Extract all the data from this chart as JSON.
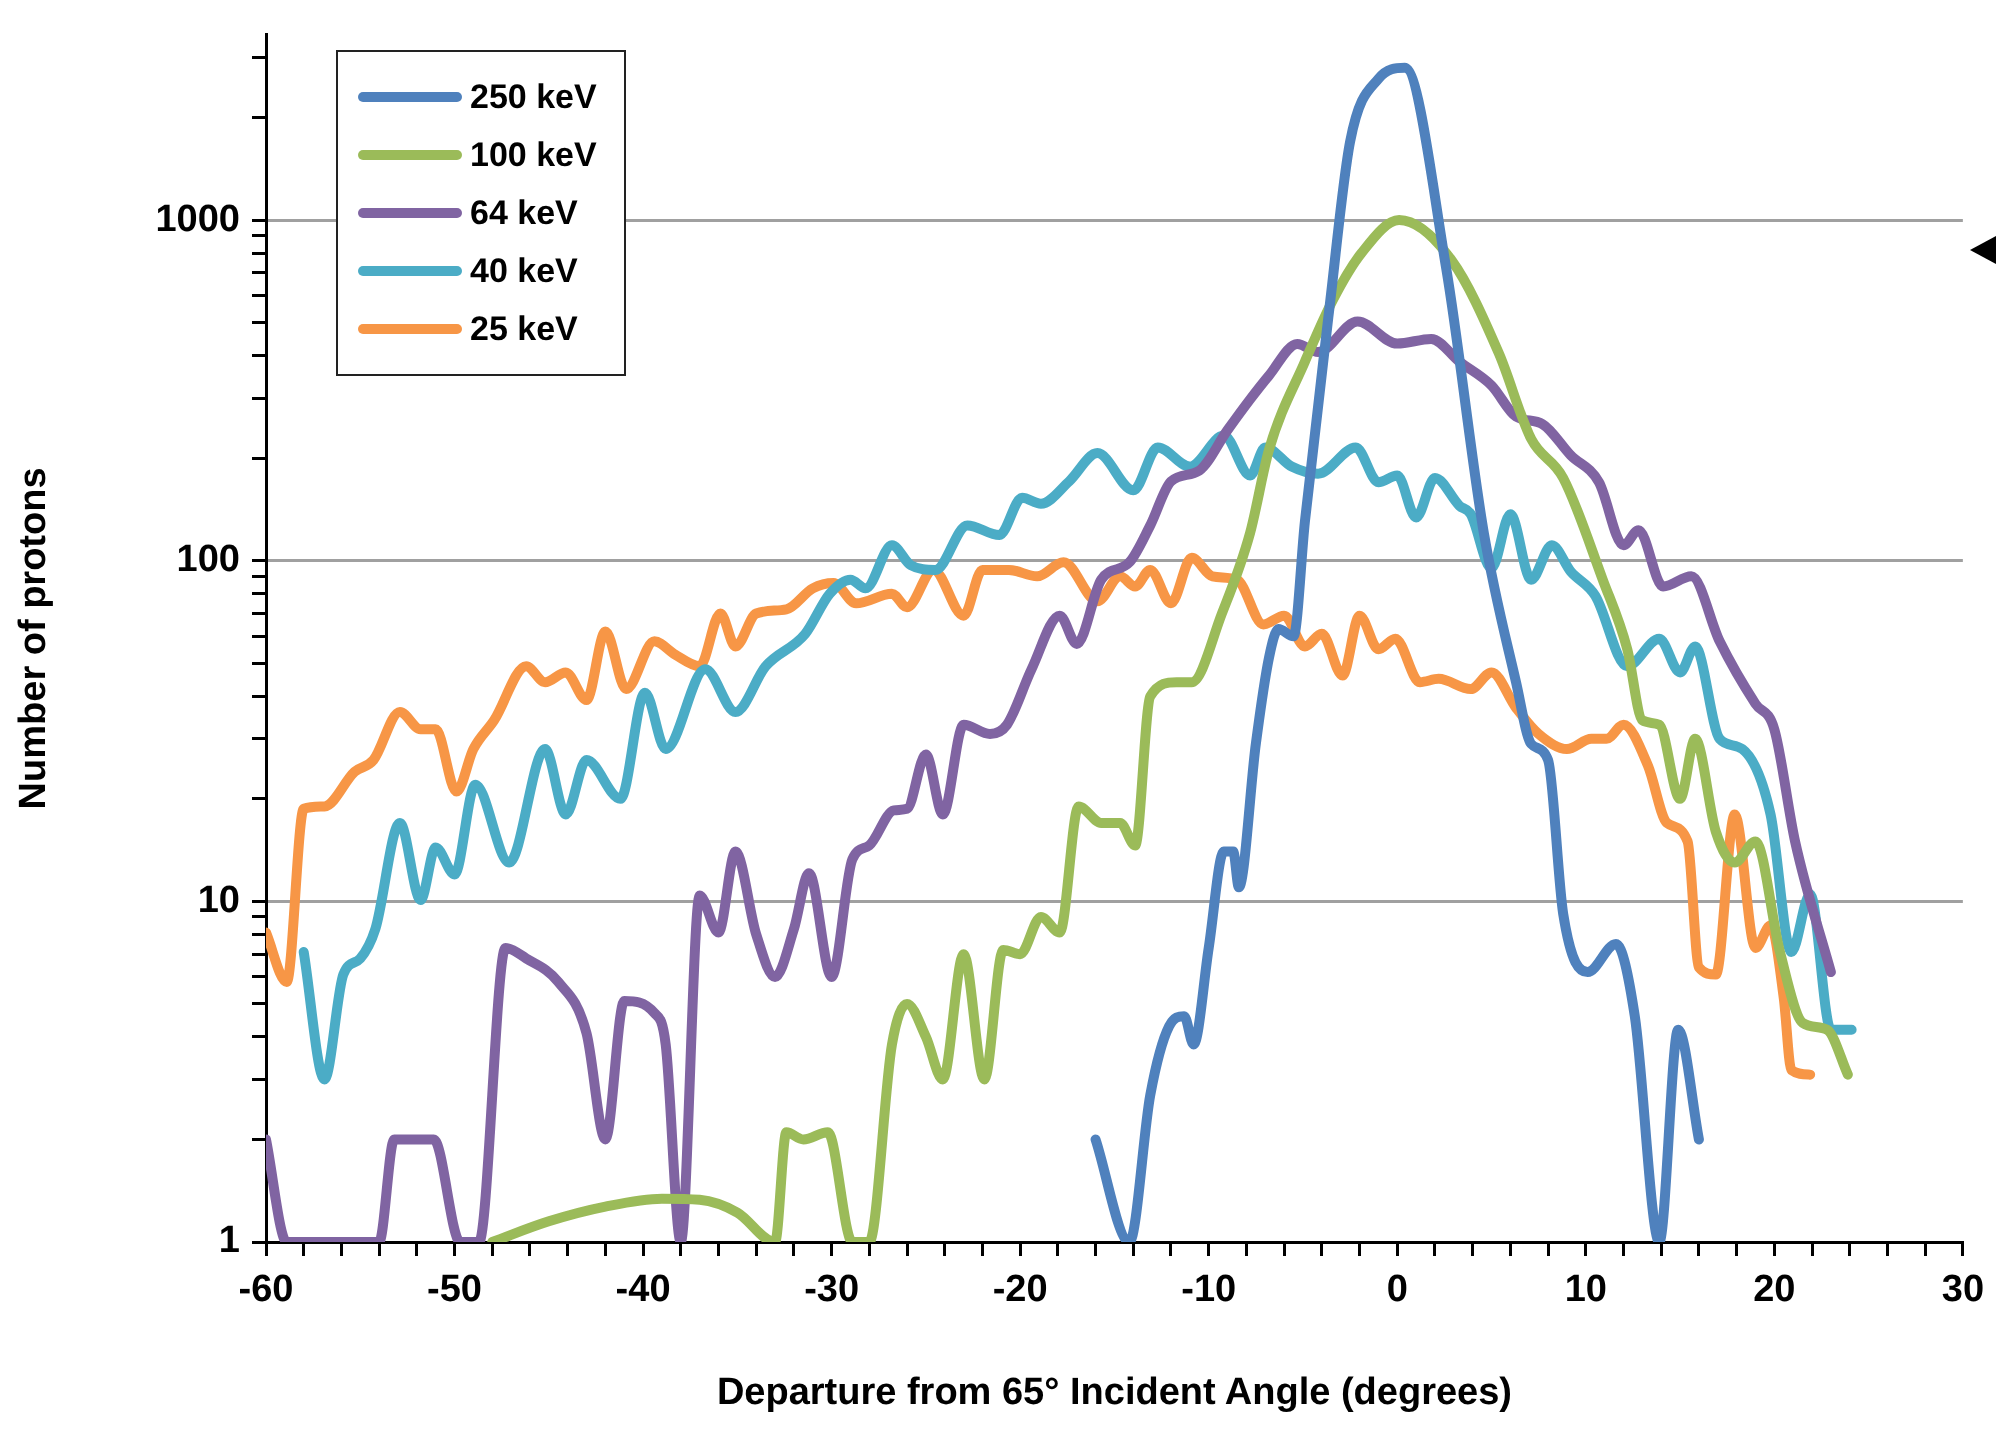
{
  "chart_data": {
    "type": "line",
    "xlabel": "Departure from 65° Incident Angle (degrees)",
    "ylabel": "Number of protons",
    "log": "y",
    "grid": "y",
    "legend": "top left",
    "marker": "none",
    "line_style": "solid",
    "xlim": [
      -60,
      30
    ],
    "ylim": [
      1,
      3500
    ],
    "xticks": [
      -60,
      {
        "value": -58,
        "label": null
      },
      {
        "value": -56,
        "label": null
      },
      {
        "value": -54,
        "label": null
      },
      {
        "value": -52,
        "label": null
      },
      -50,
      {
        "value": -48,
        "label": null
      },
      {
        "value": -46,
        "label": null
      },
      {
        "value": -44,
        "label": null
      },
      {
        "value": -42,
        "label": null
      },
      -40,
      {
        "value": -38,
        "label": null
      },
      {
        "value": -36,
        "label": null
      },
      {
        "value": -34,
        "label": null
      },
      {
        "value": -32,
        "label": null
      },
      -30,
      {
        "value": -28,
        "label": null
      },
      {
        "value": -26,
        "label": null
      },
      {
        "value": -24,
        "label": null
      },
      {
        "value": -22,
        "label": null
      },
      -20,
      {
        "value": -18,
        "label": null
      },
      {
        "value": -16,
        "label": null
      },
      {
        "value": -14,
        "label": null
      },
      {
        "value": -12,
        "label": null
      },
      -10,
      {
        "value": -8,
        "label": null
      },
      {
        "value": -6,
        "label": null
      },
      {
        "value": -4,
        "label": null
      },
      {
        "value": -2,
        "label": null
      },
      0,
      {
        "value": 2,
        "label": null
      },
      {
        "value": 4,
        "label": null
      },
      {
        "value": 6,
        "label": null
      },
      {
        "value": 8,
        "label": null
      },
      10,
      {
        "value": 12,
        "label": null
      },
      {
        "value": 14,
        "label": null
      },
      {
        "value": 16,
        "label": null
      },
      {
        "value": 18,
        "label": null
      },
      20,
      {
        "value": 22,
        "label": null
      },
      {
        "value": 24,
        "label": null
      },
      {
        "value": 26,
        "label": null
      },
      {
        "value": 28,
        "label": null
      },
      30
    ],
    "yticks": [
      1,
      {
        "value": 2,
        "label": null
      },
      {
        "value": 3,
        "label": null
      },
      {
        "value": 4,
        "label": null
      },
      {
        "value": 5,
        "label": null
      },
      {
        "value": 6,
        "label": null
      },
      {
        "value": 7,
        "label": null
      },
      {
        "value": 8,
        "label": null
      },
      {
        "value": 9,
        "label": null
      },
      10,
      {
        "value": 20,
        "label": null
      },
      {
        "value": 30,
        "label": null
      },
      {
        "value": 40,
        "label": null
      },
      {
        "value": 50,
        "label": null
      },
      {
        "value": 60,
        "label": null
      },
      {
        "value": 70,
        "label": null
      },
      {
        "value": 80,
        "label": null
      },
      {
        "value": 90,
        "label": null
      },
      100,
      {
        "value": 200,
        "label": null
      },
      {
        "value": 300,
        "label": null
      },
      {
        "value": 400,
        "label": null
      },
      {
        "value": 500,
        "label": null
      },
      {
        "value": 600,
        "label": null
      },
      {
        "value": 700,
        "label": null
      },
      {
        "value": 800,
        "label": null
      },
      {
        "value": 900,
        "label": null
      },
      1000,
      {
        "value": 2000,
        "label": null
      },
      {
        "value": 3000,
        "label": null
      }
    ],
    "series": [
      {
        "name": "250 keV",
        "color": "#4f81bd",
        "x": [
          -16,
          -14.2,
          -13.1,
          -12.1,
          -11.3,
          -10.8,
          -10,
          -9.2,
          -8.7,
          -8.4,
          -7.5,
          -6.8,
          -6.3,
          -5.5,
          -4.9,
          -3.6,
          -2.5,
          -1,
          0.4,
          2.6,
          4.6,
          6.3,
          7.1,
          8,
          8.8,
          10.1,
          11.6,
          12.6,
          13.9,
          14.9,
          16
        ],
        "values": [
          2,
          1,
          2.7,
          4.3,
          4.6,
          3.8,
          7.3,
          14,
          14,
          11,
          29,
          52,
          63,
          60,
          130,
          550,
          1700,
          2600,
          2800,
          720,
          120,
          44,
          29,
          26,
          9.2,
          6.2,
          7.5,
          4.6,
          1,
          4.2,
          2
        ]
      },
      {
        "name": "100 keV",
        "color": "#9bbb59",
        "x": [
          -48,
          -45,
          -42,
          -39,
          -37,
          -35,
          -33,
          -32.4,
          -31.5,
          -30.2,
          -28.9,
          -28,
          -26.8,
          -26,
          -25,
          -24.1,
          -23,
          -21.9,
          -20.9,
          -20,
          -18.9,
          -17.9,
          -16.9,
          -15.7,
          -14.7,
          -13.9,
          -13.1,
          -11.7,
          -10.9,
          -9.3,
          -7.8,
          -6.8,
          -4.9,
          -3.4,
          -1.9,
          0.1,
          2.9,
          5.4,
          7.1,
          8.8,
          10.9,
          12.2,
          13,
          13.9,
          15,
          15.8,
          16.9,
          17.9,
          19,
          20.3,
          21.5,
          22.8,
          23.9
        ],
        "values": [
          1,
          1.15,
          1.27,
          1.34,
          1.33,
          1.22,
          1,
          2.1,
          2,
          2.1,
          1,
          1,
          3.8,
          5,
          4,
          3,
          7,
          3,
          7.2,
          7,
          9,
          8.1,
          19,
          17,
          17,
          14.6,
          40,
          44,
          44,
          70,
          121,
          212,
          384,
          585,
          800,
          1000,
          760,
          405,
          228,
          175,
          88,
          55,
          34,
          33,
          20,
          30,
          16,
          13,
          15,
          7.1,
          4.4,
          4.2,
          3.1
        ]
      },
      {
        "name": "64 keV",
        "color": "#8064a2",
        "x": [
          -60,
          -58.9,
          -54,
          -53.2,
          -51.1,
          -49.7,
          -48.7,
          -47.3,
          -46.2,
          -44.5,
          -43,
          -42,
          -41,
          -39.4,
          -38.8,
          -38,
          -37,
          -36,
          -35.1,
          -34,
          -33,
          -32,
          -31.2,
          -30,
          -28.9,
          -28,
          -26.7,
          -26,
          -25,
          -24.1,
          -23,
          -21.6,
          -20.7,
          -19.4,
          -17.9,
          -17,
          -15.7,
          -14.2,
          -13.1,
          -12,
          -10.5,
          -9,
          -7.8,
          -6.8,
          -5.3,
          -4.2,
          -2.1,
          0,
          1.8,
          3.3,
          5,
          6.3,
          7.7,
          9.2,
          10.7,
          12,
          12.8,
          14.1,
          15.6,
          17.1,
          19,
          20,
          21.1,
          23
        ],
        "values": [
          2,
          1,
          1,
          2,
          2,
          1,
          1,
          7.3,
          6.8,
          5.8,
          4.1,
          2,
          5.1,
          4.7,
          3.8,
          1,
          10.4,
          8.1,
          14,
          8,
          6,
          8.3,
          12.1,
          6,
          13.3,
          14.6,
          18.5,
          18.7,
          27,
          18,
          33,
          31,
          33,
          48,
          69,
          57,
          88,
          99,
          127,
          171,
          184,
          242,
          298,
          350,
          433,
          410,
          504,
          434,
          448,
          384,
          327,
          265,
          252,
          204,
          170,
          111,
          123,
          84,
          90,
          58,
          38,
          32,
          15,
          6.2
        ]
      },
      {
        "name": "40 keV",
        "color": "#4bacc6",
        "x": [
          -58,
          -56.9,
          -55.9,
          -55,
          -54.2,
          -52.9,
          -51.8,
          -51,
          -50,
          -48.9,
          -47.1,
          -45.2,
          -44.1,
          -43,
          -41.2,
          -39.9,
          -38.8,
          -36.7,
          -35.1,
          -33.5,
          -31.4,
          -30.1,
          -29,
          -28.2,
          -26.8,
          -25.8,
          -24.5,
          -22.8,
          -21.1,
          -19.9,
          -18.9,
          -17.4,
          -15.9,
          -14,
          -12.7,
          -11,
          -9.2,
          -7.8,
          -7,
          -5.6,
          -4.2,
          -2.2,
          -1,
          0,
          1,
          2,
          3.3,
          3.9,
          5,
          6,
          7.1,
          8.2,
          9.2,
          10.5,
          12.2,
          13.9,
          15,
          15.8,
          17.1,
          18.3,
          19.8,
          20.9,
          21.9,
          23,
          24.1
        ],
        "values": [
          7.1,
          3,
          6.1,
          6.8,
          8.3,
          17,
          10.1,
          14.4,
          12,
          22,
          13,
          28,
          18,
          26,
          20,
          41,
          28,
          48,
          36,
          49,
          61,
          80,
          88,
          83,
          111,
          97,
          94,
          127,
          119,
          153,
          147,
          171,
          207,
          161,
          215,
          189,
          233,
          178,
          215,
          189,
          180,
          215,
          170,
          178,
          134,
          175,
          145,
          137,
          95,
          137,
          88,
          111,
          93,
          79,
          49,
          59,
          47,
          56,
          30,
          28,
          18,
          7.1,
          10.5,
          4.2,
          4.2
        ]
      },
      {
        "name": "25 keV",
        "color": "#f79646",
        "x": [
          -60,
          -58.9,
          -58,
          -56.9,
          -55.3,
          -54.3,
          -52.9,
          -51.8,
          -51,
          -49.9,
          -49,
          -47.9,
          -46.2,
          -45.2,
          -44.1,
          -43,
          -42,
          -40.9,
          -39.4,
          -38.3,
          -37,
          -35.9,
          -35.1,
          -34,
          -32.4,
          -31,
          -29.9,
          -28.7,
          -26.8,
          -26,
          -24.6,
          -23,
          -22,
          -20.6,
          -19.1,
          -17.7,
          -15.9,
          -14.7,
          -13.9,
          -13.1,
          -12,
          -10.9,
          -9.8,
          -8.5,
          -7.1,
          -6,
          -4.9,
          -4,
          -2.9,
          -2,
          -1,
          -0.1,
          1.2,
          2.2,
          3.9,
          5,
          6.3,
          7.5,
          9,
          10.3,
          11.1,
          12,
          13.3,
          14.3,
          15.4,
          16,
          16.9,
          17.9,
          19,
          19.8,
          20.5,
          20.9,
          21.9
        ],
        "values": [
          8.1,
          5.8,
          18.7,
          19,
          24,
          26,
          36,
          32,
          32,
          21,
          28,
          34,
          49,
          44,
          47,
          39,
          62,
          42,
          58,
          53,
          49,
          70,
          56,
          70,
          72,
          83,
          86,
          75,
          80,
          73,
          94,
          69,
          94,
          94,
          90,
          99,
          76,
          90,
          84,
          94,
          75,
          102,
          90,
          88,
          65,
          69,
          56,
          61,
          46,
          69,
          55,
          59,
          44,
          45,
          42,
          47,
          37,
          31,
          28,
          30,
          30,
          33,
          25,
          17,
          15,
          6.4,
          6.1,
          18,
          7.3,
          8.5,
          5.2,
          3.2,
          3.1
        ]
      }
    ]
  }
}
